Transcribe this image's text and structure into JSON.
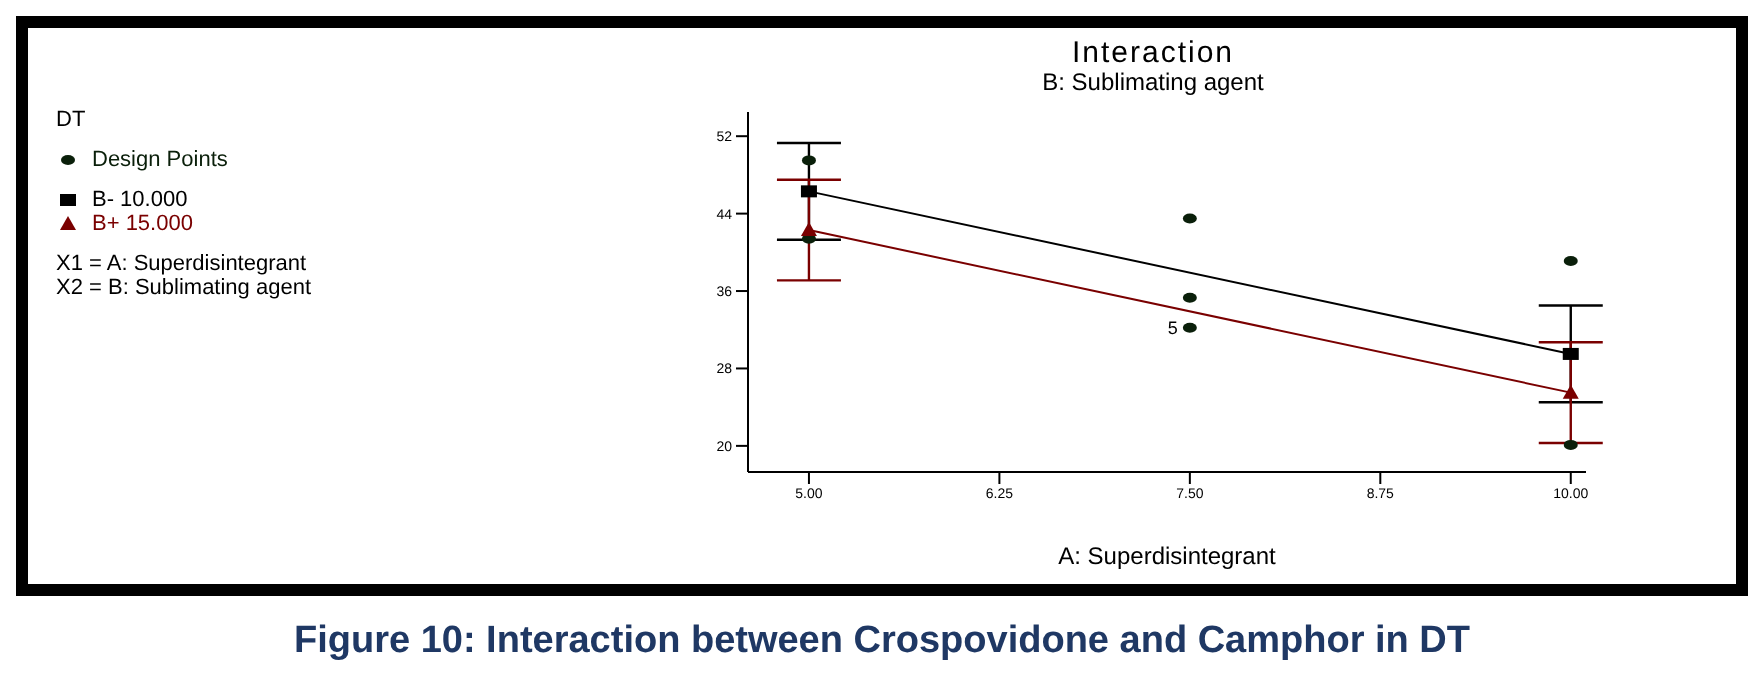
{
  "chart_data": {
    "type": "scatter",
    "title": "Interaction",
    "subtitle": "B: Sublimating agent",
    "xlabel": "A: Superdisintegrant",
    "legend_title": "DT",
    "legend": "left",
    "xlim": [
      4.6,
      10.1
    ],
    "xticks": [
      {
        "value": 5,
        "label": "5.00"
      },
      {
        "value": 6.25,
        "label": "6.25"
      },
      {
        "value": 7.5,
        "label": "7.50"
      },
      {
        "value": 8.75,
        "label": "8.75"
      },
      {
        "value": 10,
        "label": "10.00"
      }
    ],
    "ylim": [
      17.3,
      54.5
    ],
    "yticks": [
      20,
      28,
      36,
      44,
      52
    ],
    "grid": false,
    "series": [
      {
        "name": "Design Points",
        "marker": "circle",
        "color": "#0a1f0a",
        "x": [
          5,
          5,
          7.5,
          7.5,
          7.5,
          10,
          10
        ],
        "values": [
          49.5,
          41.4,
          43.5,
          35.3,
          32.2,
          39.1,
          20.1
        ]
      },
      {
        "name": "B- 10.000",
        "type": "line",
        "marker": "square",
        "color": "#000000",
        "x": [
          5,
          10
        ],
        "values": [
          46.3,
          29.5
        ],
        "errors": [
          5,
          5
        ]
      },
      {
        "name": "B+ 15.000",
        "type": "line",
        "marker": "triangle",
        "color": "#7a0000",
        "x": [
          5,
          10
        ],
        "values": [
          42.3,
          25.5
        ],
        "errors": [
          5.2,
          5.2
        ]
      }
    ],
    "annotations": [
      {
        "text": "5",
        "x": 7.5,
        "y": 32.2
      },
      "X1 = A: Superdisintegrant",
      "X2 = B: Sublimating agent",
      "Figure 10: Interaction between Crospovidone and Camphor in DT"
    ]
  }
}
